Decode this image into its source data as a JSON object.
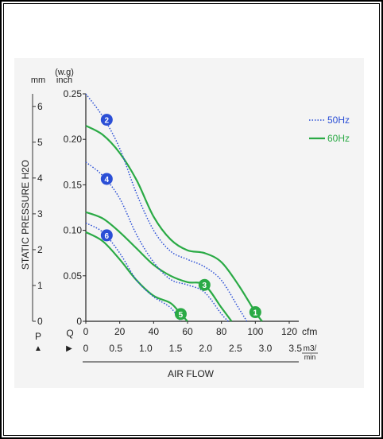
{
  "chart_data": {
    "type": "line",
    "ylabel": "STATIC PRESSURE H2O",
    "xlabel": "AIR FLOW",
    "y_mm_unit": "mm",
    "y_inch_unit_top": "(w.g)",
    "y_inch_unit": "inch",
    "x_cfm_unit": "cfm",
    "x_m3_unit_top": "m3/",
    "x_m3_unit_bottom": "min",
    "p_label": "P",
    "q_label": "Q",
    "mm_ticks": [
      "6",
      "5",
      "4",
      "3",
      "2",
      "1",
      "0"
    ],
    "inch_ticks": [
      "0.25",
      "0.20",
      "0.15",
      "0.10",
      "0.05",
      "0"
    ],
    "cfm_ticks": [
      "0",
      "20",
      "40",
      "60",
      "80",
      "100",
      "120"
    ],
    "m3_ticks": [
      "0",
      "0.5",
      "1.0",
      "1.5",
      "2.0",
      "2.5",
      "3.0",
      "3.5"
    ],
    "xlim": [
      0,
      120
    ],
    "ylim": [
      0,
      0.25
    ],
    "legend": {
      "placement": "top-right",
      "items": [
        {
          "label": "50Hz",
          "style": "dotted",
          "color": "#2b4fd6"
        },
        {
          "label": "60Hz",
          "style": "solid",
          "color": "#2aaa45"
        }
      ]
    },
    "series": [
      {
        "marker": "1",
        "hz": "60Hz",
        "color": "#2aaa45",
        "style": "solid",
        "x": [
          0,
          10,
          20,
          30,
          40,
          50,
          60,
          70,
          80,
          90,
          100,
          104
        ],
        "y": [
          0.215,
          0.205,
          0.185,
          0.155,
          0.115,
          0.09,
          0.078,
          0.075,
          0.065,
          0.04,
          0.01,
          0
        ]
      },
      {
        "marker": "2",
        "hz": "50Hz",
        "color": "#2b4fd6",
        "style": "dotted",
        "x": [
          0,
          10,
          20,
          30,
          40,
          50,
          60,
          70,
          80,
          90,
          95
        ],
        "y": [
          0.25,
          0.225,
          0.19,
          0.14,
          0.1,
          0.077,
          0.068,
          0.06,
          0.045,
          0.015,
          0
        ]
      },
      {
        "marker": "3",
        "hz": "60Hz",
        "color": "#2aaa45",
        "style": "solid",
        "x": [
          0,
          10,
          20,
          30,
          40,
          50,
          60,
          70,
          80,
          86
        ],
        "y": [
          0.12,
          0.113,
          0.098,
          0.08,
          0.062,
          0.05,
          0.043,
          0.04,
          0.015,
          0
        ]
      },
      {
        "marker": "4",
        "hz": "50Hz",
        "color": "#2b4fd6",
        "style": "dotted",
        "x": [
          0,
          10,
          20,
          30,
          40,
          50,
          60,
          70,
          80,
          84
        ],
        "y": [
          0.175,
          0.16,
          0.135,
          0.095,
          0.065,
          0.046,
          0.04,
          0.032,
          0.008,
          0
        ]
      },
      {
        "marker": "5",
        "hz": "60Hz",
        "color": "#2aaa45",
        "style": "solid",
        "x": [
          0,
          10,
          20,
          30,
          40,
          50,
          56,
          60
        ],
        "y": [
          0.098,
          0.088,
          0.068,
          0.045,
          0.028,
          0.02,
          0.008,
          0
        ]
      },
      {
        "marker": "6",
        "hz": "50Hz",
        "color": "#2b4fd6",
        "style": "dotted",
        "x": [
          0,
          10,
          20,
          30,
          40,
          50,
          56
        ],
        "y": [
          0.108,
          0.098,
          0.075,
          0.045,
          0.027,
          0.015,
          0
        ]
      }
    ]
  }
}
